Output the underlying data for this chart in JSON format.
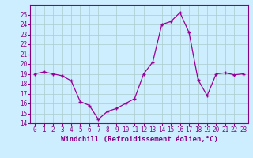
{
  "x": [
    0,
    1,
    2,
    3,
    4,
    5,
    6,
    7,
    8,
    9,
    10,
    11,
    12,
    13,
    14,
    15,
    16,
    17,
    18,
    19,
    20,
    21,
    22,
    23
  ],
  "y": [
    19.0,
    19.2,
    19.0,
    18.8,
    18.3,
    16.2,
    15.8,
    14.4,
    15.2,
    15.5,
    16.0,
    16.5,
    19.0,
    20.2,
    24.0,
    24.3,
    25.2,
    23.2,
    18.4,
    16.8,
    19.0,
    19.1,
    18.9,
    19.0
  ],
  "xlim": [
    -0.5,
    23.5
  ],
  "ylim": [
    14,
    26
  ],
  "yticks": [
    14,
    15,
    16,
    17,
    18,
    19,
    20,
    21,
    22,
    23,
    24,
    25
  ],
  "xticks": [
    0,
    1,
    2,
    3,
    4,
    5,
    6,
    7,
    8,
    9,
    10,
    11,
    12,
    13,
    14,
    15,
    16,
    17,
    18,
    19,
    20,
    21,
    22,
    23
  ],
  "xlabel": "Windchill (Refroidissement éolien,°C)",
  "line_color": "#990099",
  "marker": "+",
  "bg_color": "#cceeff",
  "grid_color": "#aacccc",
  "tick_label_color": "#880088",
  "axis_label_color": "#880088",
  "tick_fontsize": 5.5,
  "label_fontsize": 6.5,
  "linewidth": 0.9,
  "markersize": 3.5,
  "markeredgewidth": 1.0
}
